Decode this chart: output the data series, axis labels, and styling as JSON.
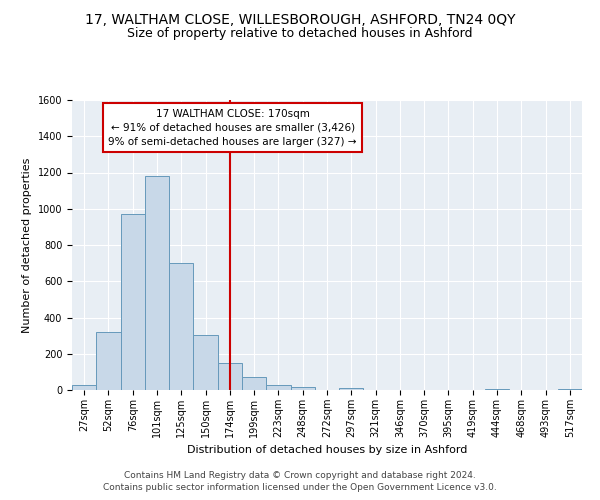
{
  "title": "17, WALTHAM CLOSE, WILLESBOROUGH, ASHFORD, TN24 0QY",
  "subtitle": "Size of property relative to detached houses in Ashford",
  "xlabel": "Distribution of detached houses by size in Ashford",
  "ylabel": "Number of detached properties",
  "bar_color": "#c8d8e8",
  "bar_edge_color": "#6699bb",
  "bar_categories": [
    "27sqm",
    "52sqm",
    "76sqm",
    "101sqm",
    "125sqm",
    "150sqm",
    "174sqm",
    "199sqm",
    "223sqm",
    "248sqm",
    "272sqm",
    "297sqm",
    "321sqm",
    "346sqm",
    "370sqm",
    "395sqm",
    "419sqm",
    "444sqm",
    "468sqm",
    "493sqm",
    "517sqm"
  ],
  "bar_values": [
    30,
    320,
    970,
    1180,
    700,
    305,
    150,
    70,
    25,
    15,
    0,
    10,
    0,
    0,
    0,
    0,
    0,
    5,
    0,
    0,
    5
  ],
  "bar_width": 1.0,
  "ylim": [
    0,
    1600
  ],
  "yticks": [
    0,
    200,
    400,
    600,
    800,
    1000,
    1200,
    1400,
    1600
  ],
  "vline_x": 6,
  "vline_color": "#cc0000",
  "annotation_text": "17 WALTHAM CLOSE: 170sqm\n← 91% of detached houses are smaller (3,426)\n9% of semi-detached houses are larger (327) →",
  "annotation_box_color": "#ffffff",
  "annotation_box_edge": "#cc0000",
  "background_color": "#e8eef4",
  "footer_line1": "Contains HM Land Registry data © Crown copyright and database right 2024.",
  "footer_line2": "Contains public sector information licensed under the Open Government Licence v3.0.",
  "title_fontsize": 10,
  "subtitle_fontsize": 9,
  "axis_label_fontsize": 8,
  "tick_fontsize": 7,
  "annotation_fontsize": 7.5,
  "footer_fontsize": 6.5
}
